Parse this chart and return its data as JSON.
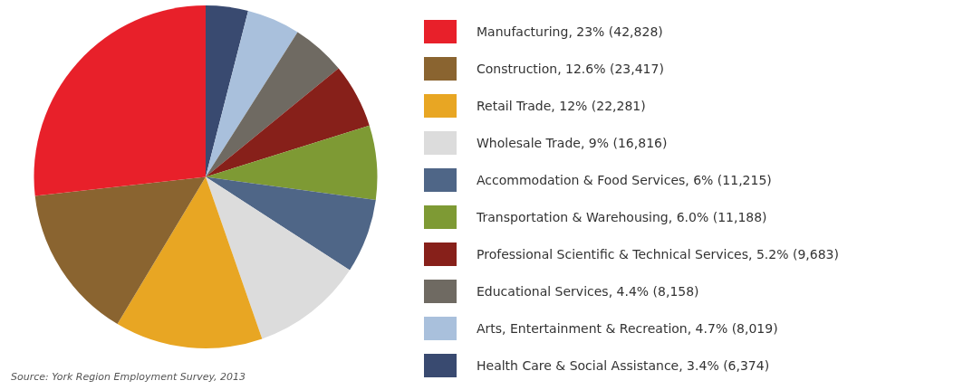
{
  "chart_data": {
    "type": "pie",
    "categories": [
      "Manufacturing, 23% (42,828)",
      "Construction, 12.6% (23,417)",
      "Retail Trade, 12% (22,281)",
      "Wholesale Trade, 9% (16,816)",
      "Accommodation & Food Services, 6% (11,215)",
      "Transportation & Warehousing, 6.0% (11,188)",
      "Professional Scientific & Technical Services, 5.2% (9,683)",
      "Educational Services, 4.4% (8,158)",
      "Arts, Entertainment & Recreation, 4.7% (8,019)",
      "Health Care & Social Assistance, 3.4% (6,374)"
    ],
    "values": [
      42828,
      23417,
      22281,
      16816,
      11215,
      11188,
      9683,
      8158,
      8019,
      6374
    ],
    "colors": [
      "#e8202a",
      "#8a6430",
      "#e8a623",
      "#dcdcdc",
      "#4f6687",
      "#7e9a34",
      "#87201a",
      "#6f6a62",
      "#a9c0dc",
      "#394a70"
    ],
    "legend": "right",
    "annotations": [
      "Source: York Region Employment Survey, 2013"
    ]
  }
}
